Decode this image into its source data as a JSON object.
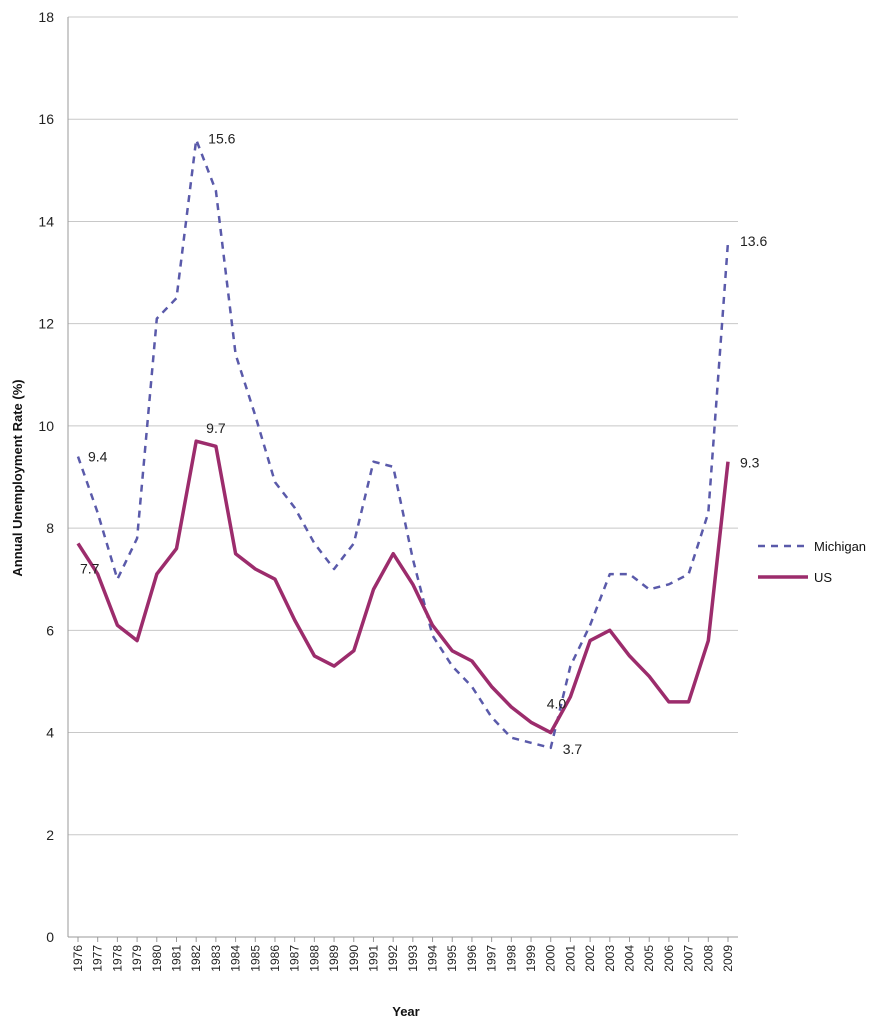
{
  "chart_data": {
    "type": "line",
    "title": "",
    "xlabel": "Year",
    "ylabel": "Annual Unemployment Rate (%)",
    "ylim": [
      0,
      18
    ],
    "yticks": [
      "0",
      "2",
      "4",
      "6",
      "8",
      "10",
      "12",
      "14",
      "16",
      "18"
    ],
    "grid": "horizontal",
    "legend_position": "right",
    "x": [
      "1976",
      "1977",
      "1978",
      "1979",
      "1980",
      "1981",
      "1982",
      "1983",
      "1984",
      "1985",
      "1986",
      "1987",
      "1988",
      "1989",
      "1990",
      "1991",
      "1992",
      "1993",
      "1994",
      "1995",
      "1996",
      "1997",
      "1998",
      "1999",
      "2000",
      "2001",
      "2002",
      "2003",
      "2004",
      "2005",
      "2006",
      "2007",
      "2008",
      "2009"
    ],
    "series": [
      {
        "name": "Michigan",
        "style": "dotted",
        "color": "#5a5aaa",
        "values": [
          9.4,
          8.3,
          7.0,
          7.8,
          12.1,
          12.5,
          15.6,
          14.6,
          11.4,
          10.2,
          8.9,
          8.4,
          7.7,
          7.2,
          7.7,
          9.3,
          9.2,
          7.4,
          5.9,
          5.3,
          4.9,
          4.3,
          3.9,
          3.8,
          3.7,
          5.3,
          6.1,
          7.1,
          7.1,
          6.8,
          6.9,
          7.1,
          8.3,
          13.6
        ]
      },
      {
        "name": "US",
        "style": "solid",
        "color": "#9c2c6c",
        "values": [
          7.7,
          7.1,
          6.1,
          5.8,
          7.1,
          7.6,
          9.7,
          9.6,
          7.5,
          7.2,
          7.0,
          6.2,
          5.5,
          5.3,
          5.6,
          6.8,
          7.5,
          6.9,
          6.1,
          5.6,
          5.4,
          4.9,
          4.5,
          4.2,
          4.0,
          4.7,
          5.8,
          6.0,
          5.5,
          5.1,
          4.6,
          4.6,
          5.8,
          9.3
        ]
      }
    ],
    "annotations": [
      {
        "text": "9.4",
        "series": "Michigan",
        "x": "1976"
      },
      {
        "text": "7.7",
        "series": "US",
        "x": "1976"
      },
      {
        "text": "15.6",
        "series": "Michigan",
        "x": "1982"
      },
      {
        "text": "9.7",
        "series": "US",
        "x": "1982"
      },
      {
        "text": "4.0",
        "series": "US",
        "x": "2000"
      },
      {
        "text": "3.7",
        "series": "Michigan",
        "x": "2000"
      },
      {
        "text": "13.6",
        "series": "Michigan",
        "x": "2009"
      },
      {
        "text": "9.3",
        "series": "US",
        "x": "2009"
      }
    ],
    "legend": [
      "Michigan",
      "US"
    ]
  }
}
